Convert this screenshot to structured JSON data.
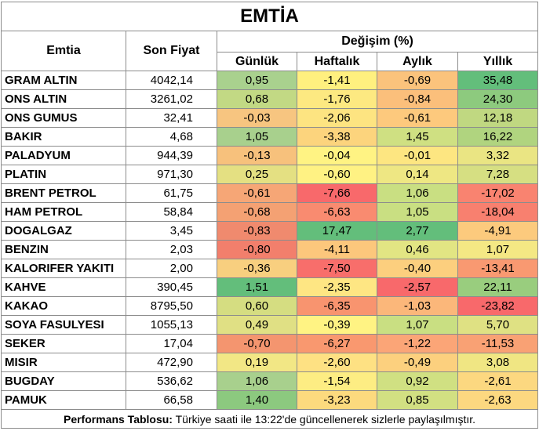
{
  "title": "EMTİA",
  "headers": {
    "emtia": "Emtia",
    "son_fiyat": "Son Fiyat",
    "degisim": "Değişim (%)",
    "gunluk": "Günlük",
    "haftalik": "Haftalık",
    "aylik": "Aylık",
    "yillik": "Yıllık"
  },
  "rows": [
    {
      "name": "GRAM ALTIN",
      "price": "4042,14",
      "gunluk": "0,95",
      "haftalik": "-1,41",
      "aylik": "-0,69",
      "yillik": "35,48"
    },
    {
      "name": "ONS ALTIN",
      "price": "3261,02",
      "gunluk": "0,68",
      "haftalik": "-1,76",
      "aylik": "-0,84",
      "yillik": "24,30"
    },
    {
      "name": "ONS GUMUS",
      "price": "32,41",
      "gunluk": "-0,03",
      "haftalik": "-2,06",
      "aylik": "-0,61",
      "yillik": "12,18"
    },
    {
      "name": "BAKIR",
      "price": "4,68",
      "gunluk": "1,05",
      "haftalik": "-3,38",
      "aylik": "1,45",
      "yillik": "16,22"
    },
    {
      "name": "PALADYUM",
      "price": "944,39",
      "gunluk": "-0,13",
      "haftalik": "-0,04",
      "aylik": "-0,01",
      "yillik": "3,32"
    },
    {
      "name": "PLATIN",
      "price": "971,30",
      "gunluk": "0,25",
      "haftalik": "-0,60",
      "aylik": "0,14",
      "yillik": "7,28"
    },
    {
      "name": "BRENT PETROL",
      "price": "61,75",
      "gunluk": "-0,61",
      "haftalik": "-7,66",
      "aylik": "1,06",
      "yillik": "-17,02"
    },
    {
      "name": "HAM PETROL",
      "price": "58,84",
      "gunluk": "-0,68",
      "haftalik": "-6,63",
      "aylik": "1,05",
      "yillik": "-18,04"
    },
    {
      "name": "DOGALGAZ",
      "price": "3,45",
      "gunluk": "-0,83",
      "haftalik": "17,47",
      "aylik": "2,77",
      "yillik": "-4,91"
    },
    {
      "name": "BENZIN",
      "price": "2,03",
      "gunluk": "-0,80",
      "haftalik": "-4,11",
      "aylik": "0,46",
      "yillik": "1,07"
    },
    {
      "name": "KALORIFER YAKITI",
      "price": "2,00",
      "gunluk": "-0,36",
      "haftalik": "-7,50",
      "aylik": "-0,40",
      "yillik": "-13,41"
    },
    {
      "name": "KAHVE",
      "price": "390,45",
      "gunluk": "1,51",
      "haftalik": "-2,35",
      "aylik": "-2,57",
      "yillik": "22,11"
    },
    {
      "name": "KAKAO",
      "price": "8795,50",
      "gunluk": "0,60",
      "haftalik": "-6,35",
      "aylik": "-1,03",
      "yillik": "-23,82"
    },
    {
      "name": "SOYA FASULYESI",
      "price": "1055,13",
      "gunluk": "0,49",
      "haftalik": "-0,39",
      "aylik": "1,07",
      "yillik": "5,70"
    },
    {
      "name": "SEKER",
      "price": "17,04",
      "gunluk": "-0,70",
      "haftalik": "-6,27",
      "aylik": "-1,22",
      "yillik": "-11,53"
    },
    {
      "name": "MISIR",
      "price": "472,90",
      "gunluk": "0,19",
      "haftalik": "-2,60",
      "aylik": "-0,49",
      "yillik": "3,08"
    },
    {
      "name": "BUGDAY",
      "price": "536,62",
      "gunluk": "1,06",
      "haftalik": "-1,54",
      "aylik": "0,92",
      "yillik": "-2,61"
    },
    {
      "name": "PAMUK",
      "price": "66,58",
      "gunluk": "1,40",
      "haftalik": "-3,23",
      "aylik": "0,85",
      "yillik": "-2,63"
    }
  ],
  "colors": {
    "gunluk": [
      "#a9d18e",
      "#c2d984",
      "#f7c580",
      "#a8d08d",
      "#f7c17c",
      "#e4e082",
      "#f6a676",
      "#f4a173",
      "#f08a6e",
      "#f27f6c",
      "#f8cf7f",
      "#63be7b",
      "#d5dd81",
      "#e0e084",
      "#f4956f",
      "#f2e785",
      "#a8d08d",
      "#8cc97f"
    ],
    "haftalik": [
      "#fff07f",
      "#fde981",
      "#fde481",
      "#fcd47d",
      "#fff383",
      "#fff283",
      "#f8696b",
      "#f98b70",
      "#63be7b",
      "#fcc77c",
      "#f86e6b",
      "#fee683",
      "#f8946f",
      "#fff383",
      "#f9986f",
      "#fee183",
      "#fded83",
      "#fcda7e"
    ],
    "aylik": [
      "#fbc37c",
      "#fbbf7b",
      "#fdc97d",
      "#cfe082",
      "#fde681",
      "#eee783",
      "#c9df82",
      "#c9df82",
      "#63be7b",
      "#e2e583",
      "#fccf7e",
      "#f8696b",
      "#fbb77a",
      "#c9df82",
      "#fba577",
      "#fcd07e",
      "#d0e082",
      "#d2e082"
    ],
    "yillik": [
      "#63be7b",
      "#8dca7e",
      "#c0d881",
      "#b0d47f",
      "#eae583",
      "#d6df82",
      "#f98370",
      "#f8806f",
      "#fcca7d",
      "#f4e884",
      "#f99971",
      "#99cd7e",
      "#f8696b",
      "#dfe183",
      "#f9a174",
      "#f0e683",
      "#fcd880",
      "#fcd880"
    ]
  },
  "footer": {
    "label": "Performans Tablosu:",
    "text": " Türkiye saati ile 13:22'de güncellenerek sizlerle paylaşılmıştır."
  }
}
